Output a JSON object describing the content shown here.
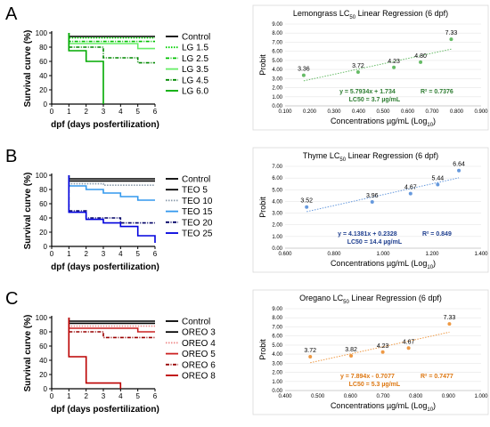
{
  "chart_data": [
    {
      "panel": "A",
      "type": "line",
      "ylabel": "Survival curve (%)",
      "xlabel": "dpf (days posfertilization)",
      "xlim": [
        0,
        6
      ],
      "ylim": [
        0,
        100
      ],
      "xticks": [
        "0",
        "1",
        "2",
        "3",
        "4",
        "5",
        "6"
      ],
      "yticks": [
        "0",
        "20",
        "40",
        "60",
        "80",
        "100"
      ],
      "series": [
        {
          "name": "Control",
          "color": "#000000",
          "dash": "solid",
          "points": [
            [
              1,
              100
            ],
            [
              1,
              95
            ],
            [
              6,
              95
            ]
          ]
        },
        {
          "name": "LG 1.5",
          "color": "#00d000",
          "dash": "dot",
          "points": [
            [
              1,
              100
            ],
            [
              1,
              93
            ],
            [
              6,
              93
            ]
          ]
        },
        {
          "name": "LG 2.5",
          "color": "#00c000",
          "dash": "dashdot",
          "points": [
            [
              1,
              100
            ],
            [
              1,
              88
            ],
            [
              6,
              88
            ]
          ]
        },
        {
          "name": "LG 3.5",
          "color": "#66ee66",
          "dash": "solid",
          "points": [
            [
              1,
              100
            ],
            [
              1,
              85
            ],
            [
              5,
              85
            ],
            [
              5,
              78
            ],
            [
              6,
              78
            ]
          ]
        },
        {
          "name": "LG 4.5",
          "color": "#008800",
          "dash": "dashdot",
          "points": [
            [
              1,
              100
            ],
            [
              1,
              80
            ],
            [
              3,
              80
            ],
            [
              3,
              65
            ],
            [
              5,
              65
            ],
            [
              5,
              58
            ],
            [
              6,
              58
            ]
          ]
        },
        {
          "name": "LG 6.0",
          "color": "#00aa00",
          "dash": "solid",
          "points": [
            [
              1,
              100
            ],
            [
              1,
              75
            ],
            [
              2,
              75
            ],
            [
              2,
              60
            ],
            [
              3,
              60
            ],
            [
              3,
              0
            ]
          ]
        }
      ]
    },
    {
      "panel": "A",
      "type": "scatter",
      "title": "Lemongrass LC50 Linear Regression (6 dpf)",
      "xlabel": "Concentrations µg/mL (Log10)",
      "ylabel": "Probit",
      "xlim": [
        0.1,
        0.9
      ],
      "ylim": [
        0,
        9
      ],
      "xticks": [
        "0.100",
        "0.200",
        "0.300",
        "0.400",
        "0.500",
        "0.600",
        "0.700",
        "0.800",
        "0.900"
      ],
      "yticks": [
        "0.00",
        "1.00",
        "2.00",
        "3.00",
        "4.00",
        "5.00",
        "6.00",
        "7.00",
        "8.00",
        "9.00"
      ],
      "color": "#66bb66",
      "eq_color": "#2e7d32",
      "x": [
        0.176,
        0.398,
        0.544,
        0.653,
        0.778
      ],
      "y": [
        3.36,
        3.72,
        4.23,
        4.8,
        7.33
      ],
      "point_labels": [
        "3.36",
        "3.72",
        "4.23",
        "4.80",
        "7.33"
      ],
      "trend": [
        0.176,
        0.778
      ],
      "equation": "y = 5.7934x + 1.734",
      "r2": "R² = 0.7376",
      "lc50": "LC50 = 3.7 µg/mL"
    },
    {
      "panel": "B",
      "type": "line",
      "ylabel": "Survival curve (%)",
      "xlabel": "dpf (days posfertilization)",
      "xlim": [
        0,
        6
      ],
      "ylim": [
        0,
        100
      ],
      "xticks": [
        "0",
        "1",
        "2",
        "3",
        "4",
        "5",
        "6"
      ],
      "yticks": [
        "0",
        "20",
        "40",
        "60",
        "80",
        "100"
      ],
      "series": [
        {
          "name": "Control",
          "color": "#000000",
          "dash": "solid",
          "points": [
            [
              1,
              100
            ],
            [
              1,
              95
            ],
            [
              6,
              95
            ]
          ]
        },
        {
          "name": "TEO 5",
          "color": "#000000",
          "dash": "solid",
          "points": [
            [
              1,
              100
            ],
            [
              1,
              92
            ],
            [
              6,
              92
            ]
          ]
        },
        {
          "name": "TEO 10",
          "color": "#8899aa",
          "dash": "dot",
          "points": [
            [
              1,
              100
            ],
            [
              1,
              88
            ],
            [
              3,
              88
            ],
            [
              3,
              86
            ],
            [
              6,
              86
            ]
          ]
        },
        {
          "name": "TEO 15",
          "color": "#3399ee",
          "dash": "solid",
          "points": [
            [
              1,
              100
            ],
            [
              1,
              85
            ],
            [
              2,
              85
            ],
            [
              2,
              80
            ],
            [
              3,
              80
            ],
            [
              3,
              75
            ],
            [
              4,
              75
            ],
            [
              4,
              70
            ],
            [
              5,
              70
            ],
            [
              5,
              65
            ],
            [
              6,
              65
            ]
          ]
        },
        {
          "name": "TEO 20",
          "color": "#000066",
          "dash": "dashdot",
          "points": [
            [
              1,
              100
            ],
            [
              1,
              50
            ],
            [
              2,
              50
            ],
            [
              2,
              40
            ],
            [
              4,
              40
            ],
            [
              4,
              33
            ],
            [
              6,
              33
            ]
          ]
        },
        {
          "name": "TEO 25",
          "color": "#0000dd",
          "dash": "solid",
          "points": [
            [
              1,
              100
            ],
            [
              1,
              48
            ],
            [
              2,
              48
            ],
            [
              2,
              38
            ],
            [
              3,
              38
            ],
            [
              3,
              33
            ],
            [
              4,
              33
            ],
            [
              4,
              28
            ],
            [
              5,
              28
            ],
            [
              5,
              15
            ],
            [
              6,
              15
            ],
            [
              6,
              5
            ]
          ]
        }
      ]
    },
    {
      "panel": "B",
      "type": "scatter",
      "title": "Thyme LC50 Linear Regression (6 dpf)",
      "xlabel": "Concentrations µg/mL (Log10)",
      "ylabel": "Probit",
      "xlim": [
        0.6,
        1.5
      ],
      "ylim": [
        0,
        7
      ],
      "xticks": [
        "0.600",
        "0.800",
        "1.000",
        "1.200",
        "1.400"
      ],
      "yticks": [
        "0.00",
        "1.00",
        "2.00",
        "3.00",
        "4.00",
        "5.00",
        "6.00",
        "7.00"
      ],
      "color": "#6699dd",
      "eq_color": "#1f3f8f",
      "x": [
        0.699,
        1.0,
        1.176,
        1.301,
        1.398
      ],
      "y": [
        3.52,
        3.96,
        4.67,
        5.44,
        6.64
      ],
      "point_labels": [
        "3.52",
        "3.96",
        "4.67",
        "5.44",
        "6.64"
      ],
      "trend": [
        0.699,
        1.398
      ],
      "equation": "y = 4.1381x + 0.2328",
      "r2": "R² = 0.849",
      "lc50": "LC50 = 14.4 µg/mL"
    },
    {
      "panel": "C",
      "type": "line",
      "ylabel": "Survival curve (%)",
      "xlabel": "dpf (days posfertilization)",
      "xlim": [
        0,
        6
      ],
      "ylim": [
        0,
        100
      ],
      "xticks": [
        "0",
        "1",
        "2",
        "3",
        "4",
        "5",
        "6"
      ],
      "yticks": [
        "0",
        "20",
        "40",
        "60",
        "80",
        "100"
      ],
      "series": [
        {
          "name": "Control",
          "color": "#000000",
          "dash": "solid",
          "points": [
            [
              1,
              100
            ],
            [
              1,
              95
            ],
            [
              6,
              95
            ]
          ]
        },
        {
          "name": "OREO 3",
          "color": "#000000",
          "dash": "solid",
          "points": [
            [
              1,
              100
            ],
            [
              1,
              92
            ],
            [
              6,
              92
            ]
          ]
        },
        {
          "name": "OREO 4",
          "color": "#ee8888",
          "dash": "dot",
          "points": [
            [
              1,
              100
            ],
            [
              1,
              88
            ],
            [
              6,
              88
            ]
          ]
        },
        {
          "name": "OREO 5",
          "color": "#cc2222",
          "dash": "solid",
          "points": [
            [
              1,
              100
            ],
            [
              1,
              85
            ],
            [
              5,
              85
            ],
            [
              5,
              80
            ],
            [
              6,
              80
            ]
          ]
        },
        {
          "name": "OREO 6",
          "color": "#990000",
          "dash": "dashdot",
          "points": [
            [
              1,
              100
            ],
            [
              1,
              80
            ],
            [
              3,
              80
            ],
            [
              3,
              72
            ],
            [
              6,
              72
            ]
          ]
        },
        {
          "name": "OREO 8",
          "color": "#bb0000",
          "dash": "solid",
          "points": [
            [
              1,
              100
            ],
            [
              1,
              45
            ],
            [
              2,
              45
            ],
            [
              2,
              8
            ],
            [
              4,
              8
            ],
            [
              4,
              0
            ]
          ]
        }
      ]
    },
    {
      "panel": "C",
      "type": "scatter",
      "title": "Oregano LC50 Linear Regression (6 dpf)",
      "xlabel": "Concentrations µg/mL (Log10)",
      "ylabel": "Probit",
      "xlim": [
        0.4,
        1.0
      ],
      "ylim": [
        0,
        9
      ],
      "xticks": [
        "0.400",
        "0.500",
        "0.600",
        "0.700",
        "0.800",
        "0.900",
        "1.000"
      ],
      "yticks": [
        "0.00",
        "1.00",
        "2.00",
        "3.00",
        "4.00",
        "5.00",
        "6.00",
        "7.00",
        "8.00",
        "9.00"
      ],
      "color": "#ee9944",
      "eq_color": "#dd7711",
      "x": [
        0.477,
        0.602,
        0.699,
        0.778,
        0.903
      ],
      "y": [
        3.72,
        3.82,
        4.23,
        4.67,
        7.33
      ],
      "point_labels": [
        "3.72",
        "3.82",
        "4.23",
        "4.67",
        "7.33"
      ],
      "trend": [
        0.477,
        0.903
      ],
      "equation": "y = 7.894x - 0.7077",
      "r2": "R² = 0.7477",
      "lc50": "LC50 = 5.3 µg/mL"
    }
  ],
  "panel_labels": [
    "A",
    "B",
    "C"
  ],
  "subscript_50": "50",
  "subscript_10": "10"
}
